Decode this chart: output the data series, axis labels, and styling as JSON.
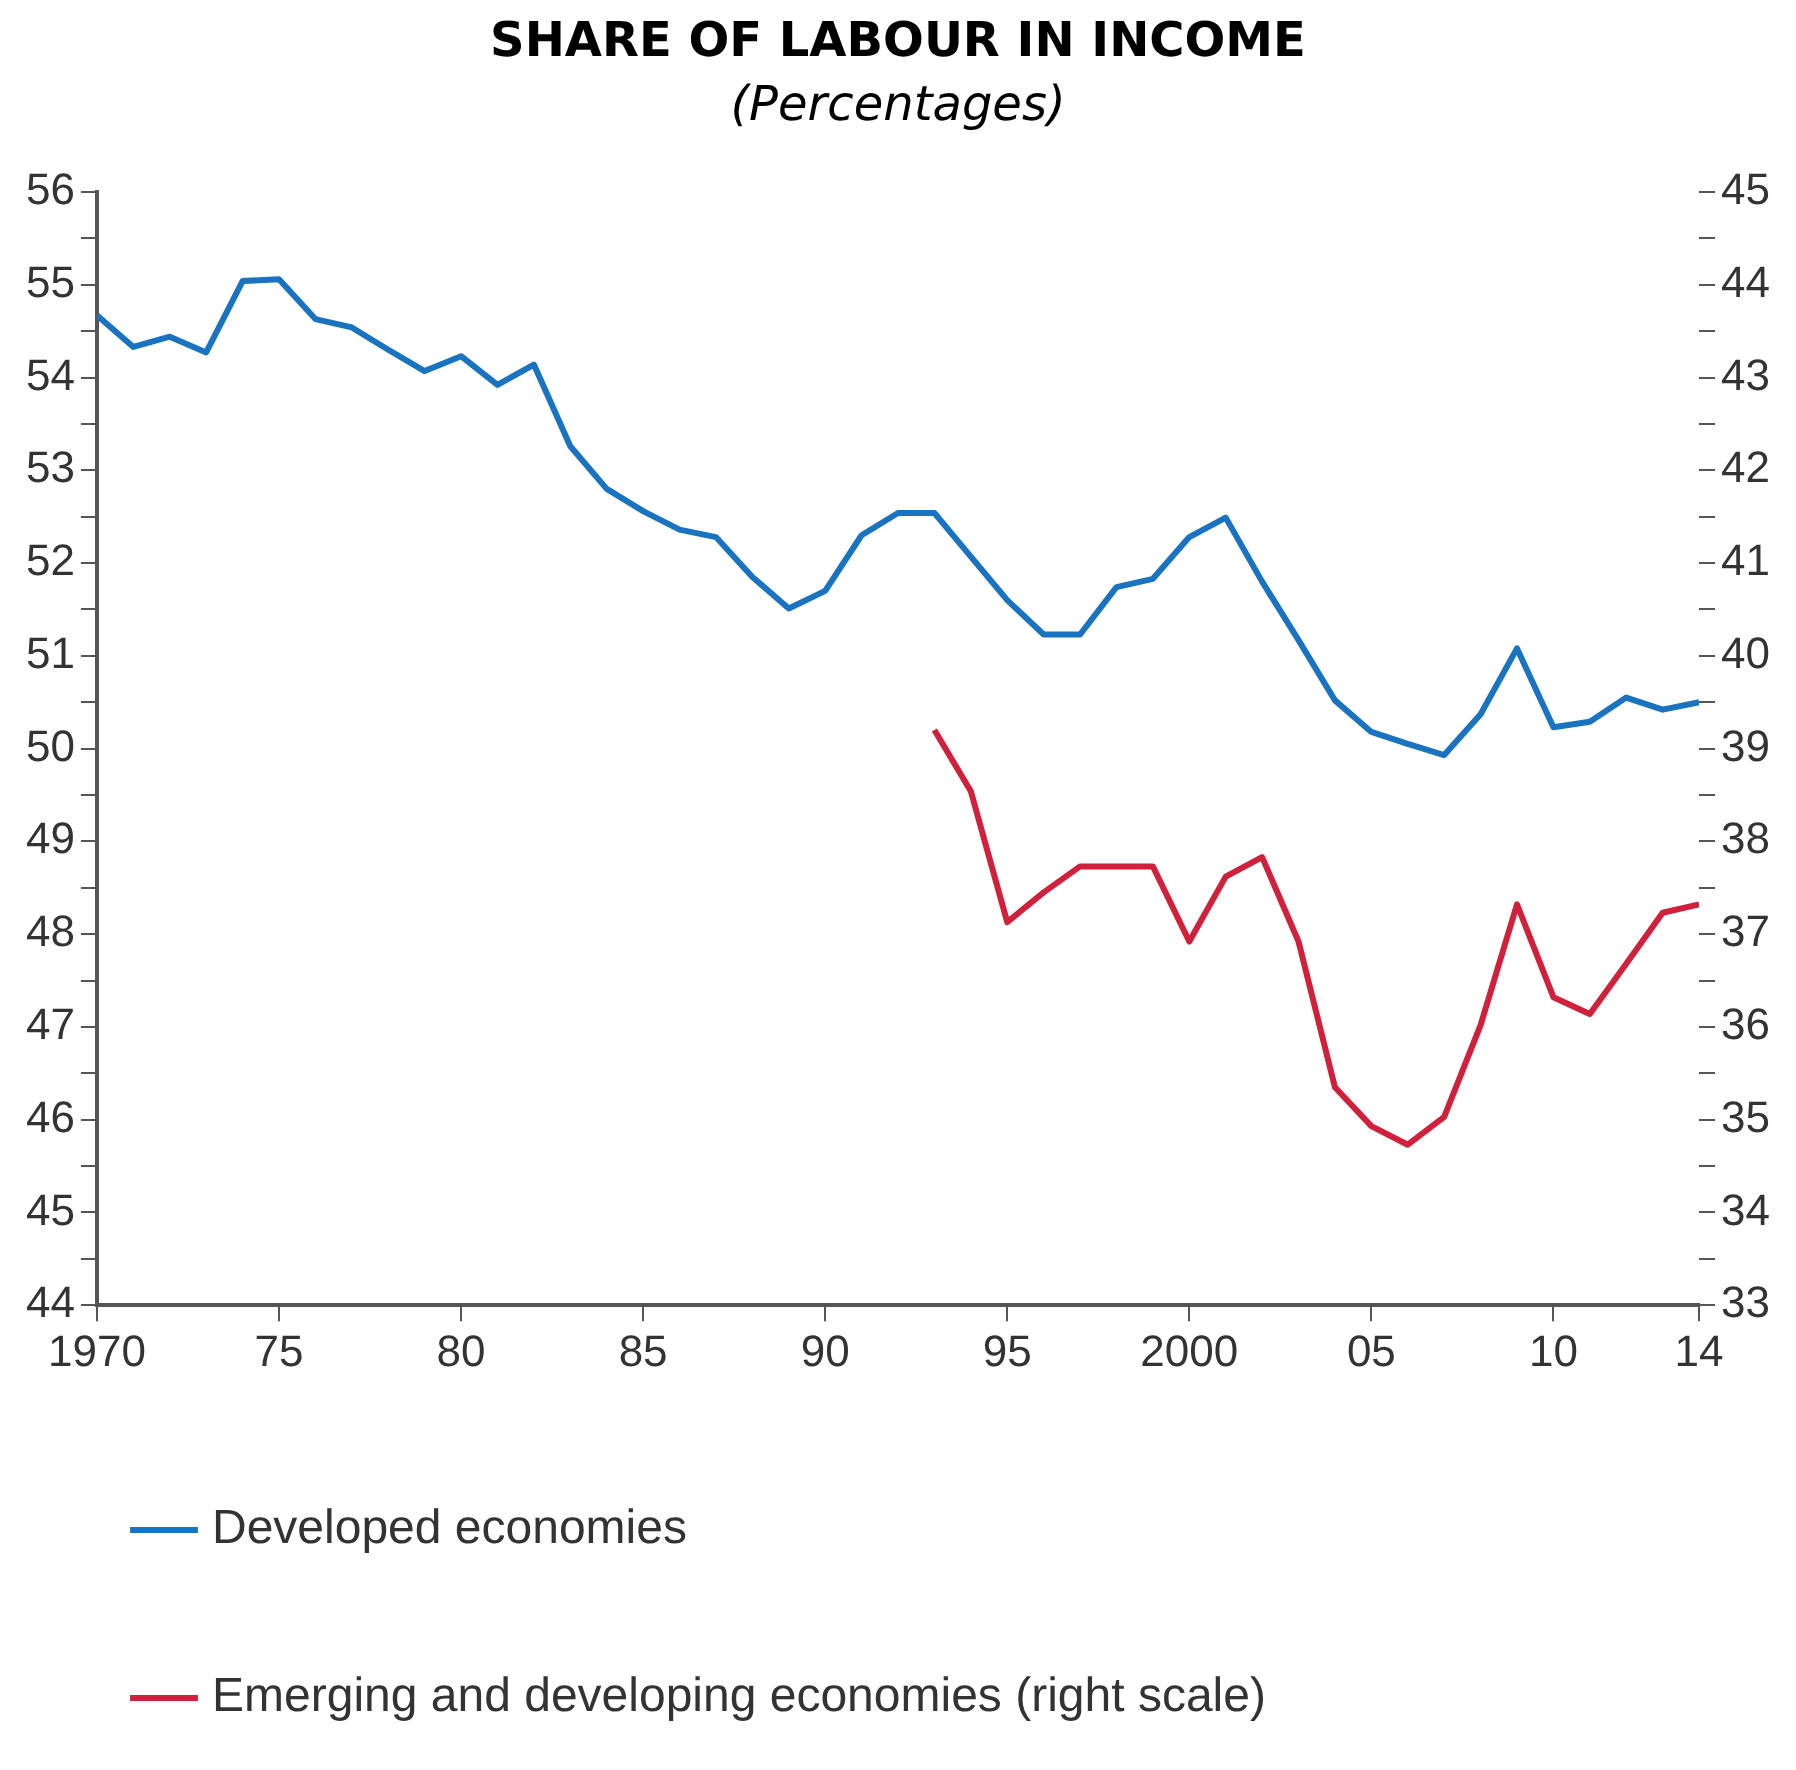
{
  "chart_data": {
    "type": "line",
    "title": "SHARE OF LABOUR IN INCOME",
    "subtitle": "(Percentages)",
    "xlim": [
      1970,
      2014
    ],
    "xticks": [
      1970,
      {
        "value": 1975,
        "label": "75"
      },
      {
        "value": 1980,
        "label": "80"
      },
      {
        "value": 1985,
        "label": "85"
      },
      {
        "value": 1990,
        "label": "90"
      },
      {
        "value": 1995,
        "label": "95"
      },
      2000,
      {
        "value": 2005,
        "label": "05"
      },
      {
        "value": 2010,
        "label": "10"
      },
      {
        "value": 2014,
        "label": "14"
      }
    ],
    "ylim": [
      44,
      56
    ],
    "yticks": [
      44,
      {
        "value": 44.5,
        "label": null
      },
      45,
      {
        "value": 45.5,
        "label": null
      },
      46,
      {
        "value": 46.5,
        "label": null
      },
      47,
      {
        "value": 47.5,
        "label": null
      },
      48,
      {
        "value": 48.5,
        "label": null
      },
      49,
      {
        "value": 49.5,
        "label": null
      },
      50,
      {
        "value": 50.5,
        "label": null
      },
      51,
      {
        "value": 51.5,
        "label": null
      },
      52,
      {
        "value": 52.5,
        "label": null
      },
      53,
      {
        "value": 53.5,
        "label": null
      },
      54,
      {
        "value": 54.5,
        "label": null
      },
      55,
      {
        "value": 55.5,
        "label": null
      },
      56
    ],
    "y2lim": [
      33,
      45
    ],
    "y2ticks": [
      33,
      {
        "value": 33.5,
        "label": null
      },
      34,
      {
        "value": 34.5,
        "label": null
      },
      35,
      {
        "value": 35.5,
        "label": null
      },
      36,
      {
        "value": 36.5,
        "label": null
      },
      37,
      {
        "value": 37.5,
        "label": null
      },
      38,
      {
        "value": 38.5,
        "label": null
      },
      39,
      {
        "value": 39.5,
        "label": null
      },
      40,
      {
        "value": 40.5,
        "label": null
      },
      41,
      {
        "value": 41.5,
        "label": null
      },
      42,
      {
        "value": 42.5,
        "label": null
      },
      43,
      {
        "value": 43.5,
        "label": null
      },
      44,
      {
        "value": 44.5,
        "label": null
      },
      45
    ],
    "grid": false,
    "legend": "bottom",
    "marker": "none",
    "line_style": "solid",
    "series": [
      {
        "name": "Developed economies",
        "color": "#1a73c0",
        "x": [
          1970,
          1971,
          1972,
          1973,
          1974,
          1975,
          1976,
          1977,
          1978,
          1979,
          1980,
          1981,
          1982,
          1983,
          1984,
          1985,
          1986,
          1987,
          1988,
          1989,
          1990,
          1991,
          1992,
          1993,
          1994,
          1995,
          1996,
          1997,
          1998,
          1999,
          2000,
          2001,
          2002,
          2003,
          2004,
          2005,
          2006,
          2007,
          2008,
          2009,
          2010,
          2011,
          2012,
          2013,
          2014
        ],
        "values": [
          54.67,
          54.33,
          54.44,
          54.27,
          55.04,
          55.06,
          54.63,
          54.54,
          54.3,
          54.07,
          54.23,
          53.92,
          54.14,
          53.26,
          52.8,
          52.56,
          52.36,
          52.28,
          51.85,
          51.51,
          51.7,
          52.3,
          52.54,
          52.54,
          52.07,
          51.6,
          51.23,
          51.23,
          51.74,
          51.83,
          52.28,
          52.49,
          51.8,
          51.17,
          50.52,
          50.18,
          50.05,
          49.93,
          50.37,
          51.08,
          50.23,
          50.29,
          50.55,
          50.42,
          50.5
        ]
      },
      {
        "name": "Emerging and developing economies (right scale)",
        "color": "#d0203c",
        "axis": "y2",
        "x": [
          1993,
          1994,
          1995,
          1996,
          1997,
          1998,
          1999,
          2000,
          2001,
          2002,
          2003,
          2004,
          2005,
          2006,
          2007,
          2008,
          2009,
          2010,
          2011,
          2012,
          2013,
          2014
        ],
        "values": [
          39.2,
          38.54,
          37.13,
          37.45,
          37.73,
          37.73,
          37.73,
          36.92,
          37.62,
          37.83,
          36.92,
          35.35,
          34.93,
          34.73,
          35.03,
          36.02,
          37.32,
          36.32,
          36.14,
          36.68,
          37.23,
          37.32
        ]
      }
    ]
  }
}
